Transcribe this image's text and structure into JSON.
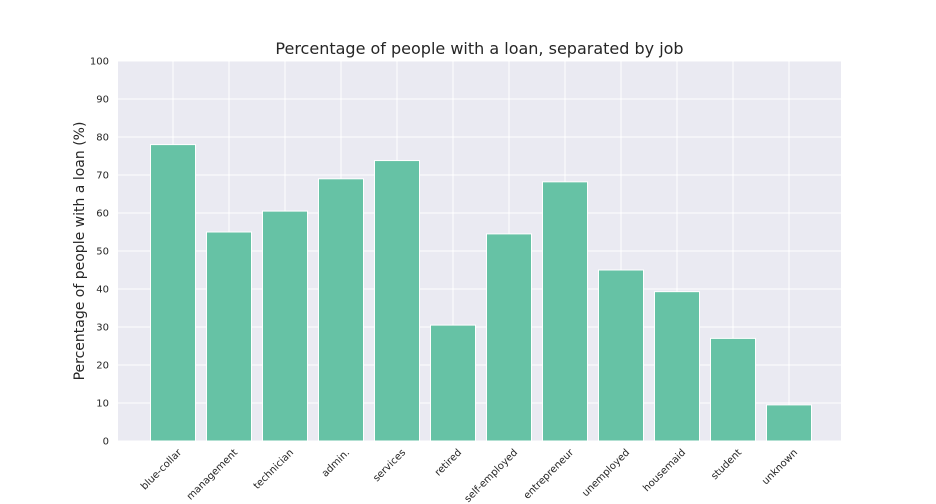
{
  "chart_data": {
    "type": "bar",
    "title": "Percentage of people with a loan, separated by job",
    "xlabel": "",
    "ylabel": "Percentage of people with a loan (%)",
    "categories": [
      "blue-collar",
      "management",
      "technician",
      "admin.",
      "services",
      "retired",
      "self-employed",
      "entrepreneur",
      "unemployed",
      "housemaid",
      "student",
      "unknown"
    ],
    "values": [
      78,
      55,
      60.5,
      69,
      73.8,
      30.5,
      54.5,
      68.2,
      45,
      39.3,
      27,
      9.5
    ],
    "ylim": [
      0,
      100
    ],
    "yticks": [
      0,
      10,
      20,
      30,
      40,
      50,
      60,
      70,
      80,
      90,
      100
    ],
    "grid": true,
    "colors": {
      "bar": "#66c2a5",
      "plot_background": "#eaeaf2",
      "grid": "#ffffff"
    }
  }
}
